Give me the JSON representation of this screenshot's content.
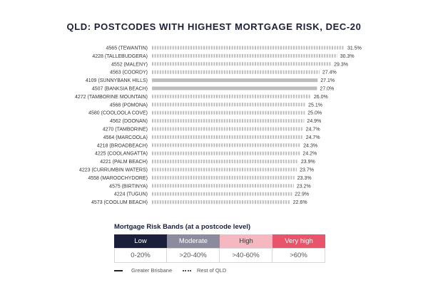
{
  "chart_data": {
    "type": "bar",
    "title": "QLD: POSTCODES WITH HIGHEST MORTGAGE RISK, DEC-20",
    "orientation": "horizontal",
    "categories": [
      "4565 (TEWANTIN)",
      "4228 (TALLEBUDGERA)",
      "4552 (MALENY)",
      "4563 (COORDY)",
      "4109 (SUNNYBANK HILLS)",
      "4507 (BANKSIA BEACH)",
      "4272 (TAMBORINE MOUNTAIN)",
      "4568 (POMONA)",
      "4580 (COOLOOLA COVE)",
      "4562 (DOONAN)",
      "4270 (TAMBORINE)",
      "4564 (MARCOOLA)",
      "4218 (BROADBEACH)",
      "4225 (COOLANGATTA)",
      "4221 (PALM BEACH)",
      "4223 (CURRUMBIN WATERS)",
      "4558 (MAROOCHYDORE)",
      "4575 (BIRTINYA)",
      "4224 (TUGUN)",
      "4573 (COOLUM BEACH)"
    ],
    "values": [
      31.5,
      30.3,
      29.3,
      27.4,
      27.1,
      27.0,
      26.0,
      25.1,
      25.0,
      24.9,
      24.7,
      24.7,
      24.3,
      24.2,
      23.9,
      23.7,
      23.3,
      23.2,
      22.9,
      22.6
    ],
    "value_labels": [
      "31.5%",
      "30.3%",
      "29.3%",
      "27.4%",
      "27.1%",
      "27.0%",
      "26.0%",
      "25.1%",
      "25.0%",
      "24.9%",
      "24.7%",
      "24.7%",
      "24.3%",
      "24.2%",
      "23.9%",
      "23.7%",
      "23.3%",
      "23.2%",
      "22.9%",
      "22.6%"
    ],
    "region": [
      "Rest of QLD",
      "Rest of QLD",
      "Rest of QLD",
      "Rest of QLD",
      "Greater Brisbane",
      "Greater Brisbane",
      "Rest of QLD",
      "Rest of QLD",
      "Rest of QLD",
      "Rest of QLD",
      "Rest of QLD",
      "Rest of QLD",
      "Rest of QLD",
      "Rest of QLD",
      "Rest of QLD",
      "Rest of QLD",
      "Rest of QLD",
      "Rest of QLD",
      "Rest of QLD",
      "Rest of QLD"
    ],
    "xlim": [
      0,
      31.5
    ],
    "grid": false,
    "colors": {
      "bar": "#bdbdbd"
    }
  },
  "legend": {
    "title": "Mortgage Risk Bands (at a postcode level)",
    "bands": [
      {
        "label": "Low",
        "range": "0-20%",
        "color": "#1b1f3b",
        "text_color": "#ffffff"
      },
      {
        "label": "Moderate",
        "range": ">20-40%",
        "color": "#8a8b9e",
        "text_color": "#ffffff"
      },
      {
        "label": "High",
        "range": ">40-60%",
        "color": "#f5b8c0",
        "text_color": "#333333"
      },
      {
        "label": "Very high",
        "range": ">60%",
        "color": "#e8546a",
        "text_color": "#ffffff"
      }
    ],
    "series_keys": {
      "solid": "Greater Brisbane",
      "dotted": "Rest of QLD"
    }
  }
}
